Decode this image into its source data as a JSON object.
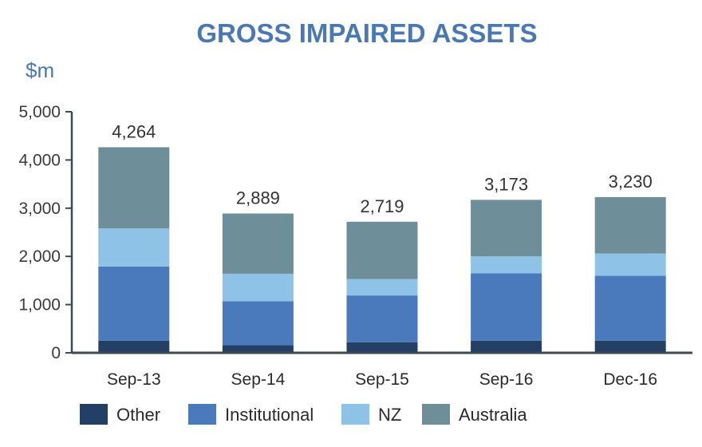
{
  "chart_data": {
    "type": "bar",
    "stacked": true,
    "title": "GROSS IMPAIRED ASSETS",
    "unit_label": "$m",
    "categories": [
      "Sep-13",
      "Sep-14",
      "Sep-15",
      "Sep-16",
      "Dec-16"
    ],
    "totals_labels": [
      "4,264",
      "2,889",
      "2,719",
      "3,173",
      "3,230"
    ],
    "ylim": [
      0,
      5000
    ],
    "yticks": [
      0,
      1000,
      2000,
      3000,
      4000,
      5000
    ],
    "ytick_labels": [
      "0",
      "1,000",
      "2,000",
      "3,000",
      "4,000",
      "5,000"
    ],
    "series": [
      {
        "name": "Other",
        "color": "#243f66",
        "values": [
          250,
          160,
          220,
          250,
          250
        ]
      },
      {
        "name": "Institutional",
        "color": "#4a7abb",
        "values": [
          1540,
          910,
          970,
          1400,
          1350
        ]
      },
      {
        "name": "NZ",
        "color": "#8fc2e7",
        "values": [
          790,
          570,
          340,
          350,
          460
        ]
      },
      {
        "name": "Australia",
        "color": "#6e8e99",
        "values": [
          1684,
          1249,
          1189,
          1173,
          1170
        ]
      }
    ],
    "legend_position": "bottom",
    "grid": false
  }
}
